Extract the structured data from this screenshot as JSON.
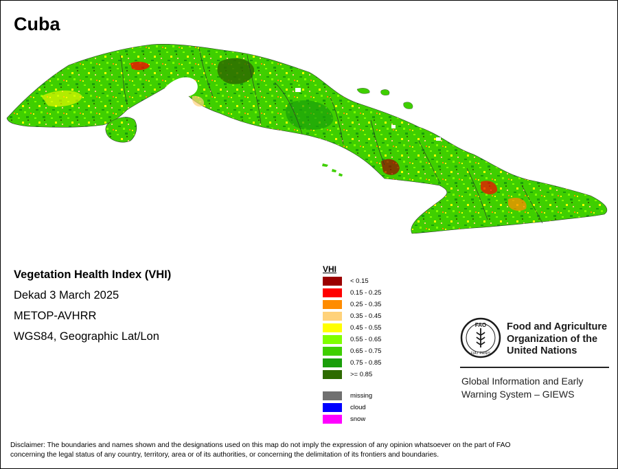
{
  "map": {
    "title": "Cuba"
  },
  "info": {
    "index_name": "Vegetation Health Index (VHI)",
    "period": "Dekad 3 March 2025",
    "sensor": "METOP-AVHRR",
    "projection": "WGS84, Geographic Lat/Lon"
  },
  "legend": {
    "title": "VHI",
    "classes": [
      {
        "label": "< 0.15",
        "color": "#9b0000"
      },
      {
        "label": "0.15 - 0.25",
        "color": "#ff0000"
      },
      {
        "label": "0.25 - 0.35",
        "color": "#ff8c00"
      },
      {
        "label": "0.35 - 0.45",
        "color": "#ffd27a"
      },
      {
        "label": "0.45 - 0.55",
        "color": "#ffff00"
      },
      {
        "label": "0.55 - 0.65",
        "color": "#7fff00"
      },
      {
        "label": "0.65 - 0.75",
        "color": "#3fcf00"
      },
      {
        "label": "0.75 - 0.85",
        "color": "#1a9e0a"
      },
      {
        "label": ">= 0.85",
        "color": "#2e6b00"
      }
    ],
    "other": [
      {
        "label": "missing",
        "color": "#707070"
      },
      {
        "label": "cloud",
        "color": "#0000ff"
      },
      {
        "label": "snow",
        "color": "#ff00ff"
      }
    ]
  },
  "organization": {
    "logo_letters": "FAO",
    "logo_motto": "FIAT PANIS",
    "name_line1": "Food and Agriculture",
    "name_line2": "Organization of the",
    "name_line3": "United Nations",
    "system_line1": "Global Information and Early",
    "system_line2": "Warning System – GIEWS"
  },
  "disclaimer": {
    "line1": "Disclaimer: The boundaries and names shown and the designations used on this map do not imply the expression of any opinion whatsoever on the part of FAO",
    "line2": "concerning the legal status of any country, territory, area or of its authorities, or concerning the delimitation of its frontiers and boundaries."
  }
}
